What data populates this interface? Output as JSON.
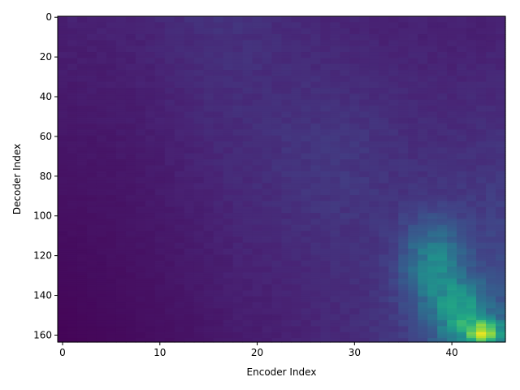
{
  "chart_data": {
    "type": "heatmap",
    "title": "",
    "xlabel": "Encoder Index",
    "ylabel": "Decoder Index",
    "n_cols": 46,
    "n_rows": 164,
    "xlim": [
      -0.5,
      45.5
    ],
    "ylim": [
      163.5,
      -0.5
    ],
    "x_ticks": [
      0,
      10,
      20,
      30,
      40
    ],
    "y_ticks": [
      0,
      20,
      40,
      60,
      80,
      100,
      120,
      140,
      160
    ],
    "colormap": "viridis",
    "value_range": [
      0,
      1
    ],
    "grid": false,
    "legend": "none",
    "description_of_values": {
      "peak_cell": {
        "encoder": 43,
        "decoder": 160,
        "value": 1.0
      },
      "bright_region": {
        "encoder_range": [
          37,
          45
        ],
        "decoder_range": [
          115,
          163
        ]
      },
      "dark_region": {
        "encoder_range": [
          0,
          8
        ],
        "decoder_range": [
          100,
          163
        ]
      },
      "faint_band": {
        "encoder_range": [
          14,
          20
        ],
        "decoder_range": [
          0,
          60
        ]
      }
    }
  }
}
